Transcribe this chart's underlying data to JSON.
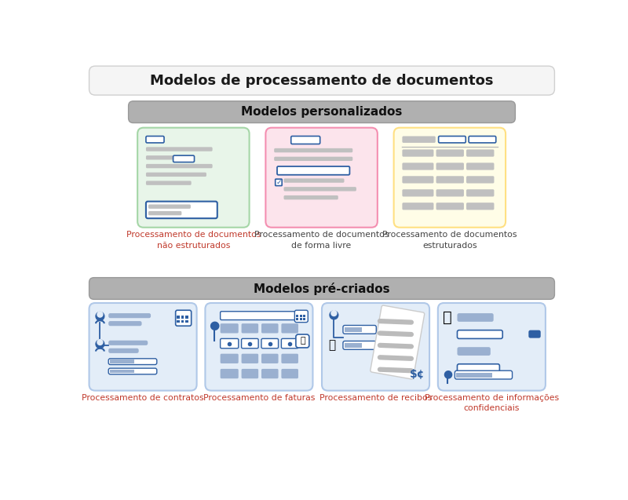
{
  "title": "Modelos de processamento de documentos",
  "section1_title": "Modelos personalizados",
  "section2_title": "Modelos pré-criados",
  "custom_cards": [
    {
      "bg": "#e8f5e9",
      "border": "#a5d6a7",
      "label": "Processamento de documentos\nnão estruturados",
      "label_color": "#c0392b",
      "type": "unstructured"
    },
    {
      "bg": "#fce4ec",
      "border": "#f48fb1",
      "label": "Processamento de documentos\nde forma livre",
      "label_color": "#444444",
      "type": "freeform"
    },
    {
      "bg": "#fffde7",
      "border": "#ffe082",
      "label": "Processamento de documentos\nestruturados",
      "label_color": "#444444",
      "type": "structured"
    }
  ],
  "prebuilt_cards": [
    {
      "bg": "#e3edf8",
      "border": "#b0c8e8",
      "label": "Processamento de contratos",
      "label_color": "#c0392b",
      "type": "contracts"
    },
    {
      "bg": "#e3edf8",
      "border": "#b0c8e8",
      "label": "Processamento de faturas",
      "label_color": "#c0392b",
      "type": "invoices"
    },
    {
      "bg": "#e3edf8",
      "border": "#b0c8e8",
      "label": "Processamento de recibos",
      "label_color": "#c0392b",
      "type": "receipts"
    },
    {
      "bg": "#e3edf8",
      "border": "#b0c8e8",
      "label": "Processamento de informações\nconfidenciais",
      "label_color": "#c0392b",
      "type": "confidential"
    }
  ],
  "blue": "#2e5fa3",
  "gray_fill": "#c8c8c8",
  "dark_gray_fill": "#9a9a9a",
  "bg_color": "#ffffff"
}
